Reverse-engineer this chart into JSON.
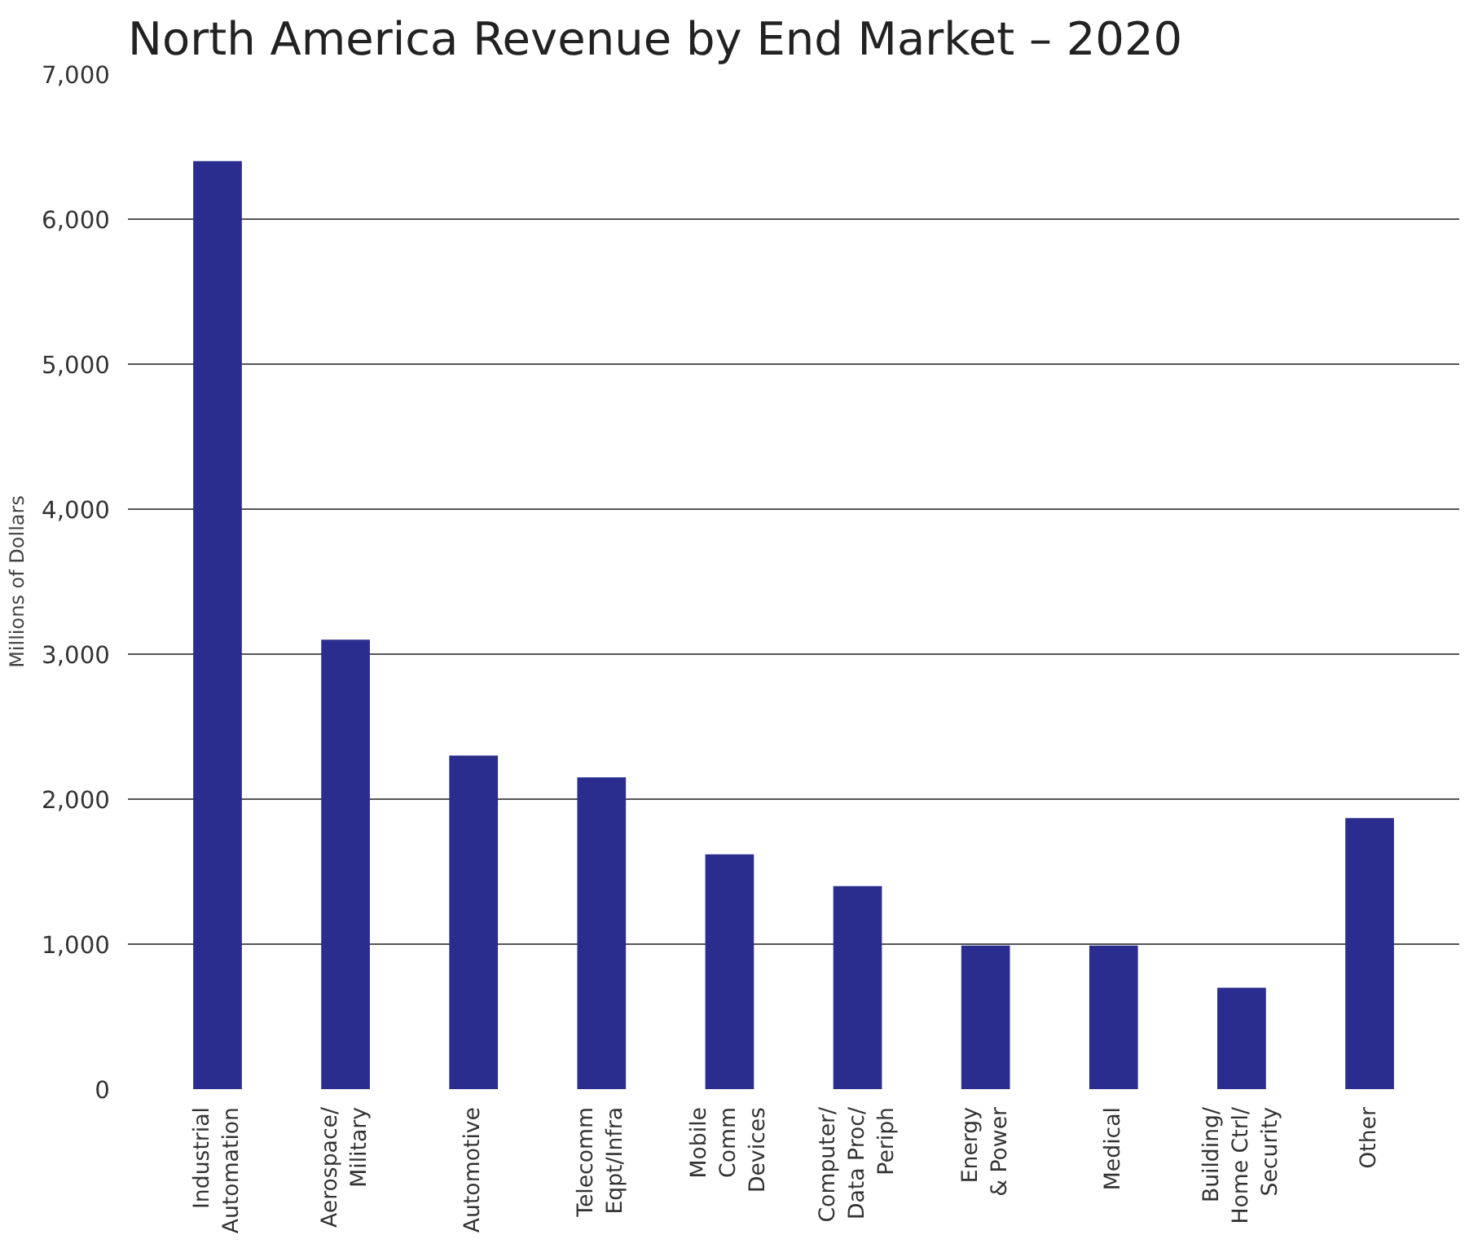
{
  "chart_data": {
    "type": "bar",
    "title": "North America Revenue by End Market – 2020",
    "ylabel": "Millions of Dollars",
    "categories": [
      "Industrial\nAutomation",
      "Aerospace/\nMilitary",
      "Automotive",
      "Telecomm\nEqpt/Infra",
      "Mobile\nComm\nDevices",
      "Computer/\nData Proc/\nPeriph",
      "Energy\n& Power",
      "Medical",
      "Building/\nHome Ctrl/\nSecurity",
      "Other"
    ],
    "values": [
      6400,
      3100,
      2300,
      2150,
      1620,
      1400,
      990,
      990,
      700,
      1870
    ],
    "color": "#2b2d8e",
    "ylim": [
      0,
      7000
    ],
    "yticks": [
      {
        "value": 0,
        "label": "0"
      },
      {
        "value": 1000,
        "label": "1,000"
      },
      {
        "value": 2000,
        "label": "2,000"
      },
      {
        "value": 3000,
        "label": "3,000"
      },
      {
        "value": 4000,
        "label": "4,000"
      },
      {
        "value": 5000,
        "label": "5,000"
      },
      {
        "value": 6000,
        "label": "6,000"
      },
      {
        "value": 7000,
        "label": "7,000"
      }
    ],
    "grid": "y",
    "legend": false
  }
}
